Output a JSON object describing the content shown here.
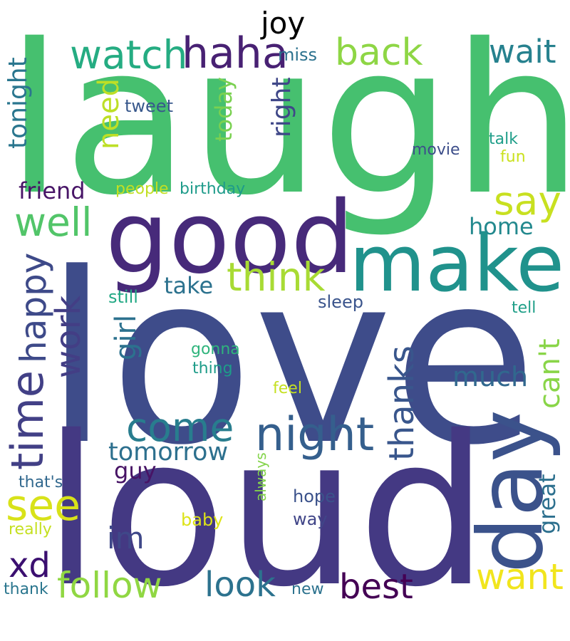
{
  "words": [
    {
      "text": "laugh",
      "color": "#46c06f"
    },
    {
      "text": "love",
      "color": "#3e4c8a"
    },
    {
      "text": "loud",
      "color": "#443983"
    },
    {
      "text": "good",
      "color": "#472a7a"
    },
    {
      "text": "make",
      "color": "#20928c"
    },
    {
      "text": "day",
      "color": "#3b528b"
    },
    {
      "text": "time",
      "color": "#424086"
    },
    {
      "text": "night",
      "color": "#355f8d"
    },
    {
      "text": "haha",
      "color": "#482173"
    },
    {
      "text": "watch",
      "color": "#25ac82"
    },
    {
      "text": "back",
      "color": "#8ed645"
    },
    {
      "text": "wait",
      "color": "#26818e"
    },
    {
      "text": "joy",
      "color": "#000000"
    },
    {
      "text": "think",
      "color": "#a8db34"
    },
    {
      "text": "well",
      "color": "#52c569"
    },
    {
      "text": "say",
      "color": "#c8e020"
    },
    {
      "text": "see",
      "color": "#d8e219"
    },
    {
      "text": "come",
      "color": "#287d8e"
    },
    {
      "text": "happy",
      "color": "#3e4a89"
    },
    {
      "text": "work",
      "color": "#433e85"
    },
    {
      "text": "thanks",
      "color": "#39568c"
    },
    {
      "text": "follow",
      "color": "#90d743"
    },
    {
      "text": "look",
      "color": "#2c728e"
    },
    {
      "text": "best",
      "color": "#440154"
    },
    {
      "text": "want",
      "color": "#f1e51d"
    },
    {
      "text": "can't",
      "color": "#89d548"
    },
    {
      "text": "xd",
      "color": "#3b0f70"
    },
    {
      "text": "need",
      "color": "#bddf26"
    },
    {
      "text": "tonight",
      "color": "#2a768e"
    },
    {
      "text": "girl",
      "color": "#2c718e"
    },
    {
      "text": "right",
      "color": "#3f4788"
    },
    {
      "text": "today",
      "color": "#7ad151"
    },
    {
      "text": "much",
      "color": "#31688e"
    },
    {
      "text": "im",
      "color": "#3f4889"
    },
    {
      "text": "tomorrow",
      "color": "#2d708e"
    },
    {
      "text": "friend",
      "color": "#481567"
    },
    {
      "text": "great",
      "color": "#2d708e"
    },
    {
      "text": "home",
      "color": "#23898e"
    },
    {
      "text": "take",
      "color": "#2c728e"
    },
    {
      "text": "guy",
      "color": "#471365"
    },
    {
      "text": "miss",
      "color": "#2c728e"
    },
    {
      "text": "tweet",
      "color": "#38588c"
    },
    {
      "text": "people",
      "color": "#c2df23"
    },
    {
      "text": "birthday",
      "color": "#1e9b8a"
    },
    {
      "text": "movie",
      "color": "#3d4e8a"
    },
    {
      "text": "talk",
      "color": "#1f9e89"
    },
    {
      "text": "fun",
      "color": "#cae11f"
    },
    {
      "text": "still",
      "color": "#22a884"
    },
    {
      "text": "sleep",
      "color": "#3a548c"
    },
    {
      "text": "tell",
      "color": "#1f9f88"
    },
    {
      "text": "gonna",
      "color": "#2fb47c"
    },
    {
      "text": "thing",
      "color": "#1e9c89"
    },
    {
      "text": "feel",
      "color": "#c5e021"
    },
    {
      "text": "that's",
      "color": "#31688e"
    },
    {
      "text": "always",
      "color": "#84d44b"
    },
    {
      "text": "hope",
      "color": "#3b528b"
    },
    {
      "text": "way",
      "color": "#404588"
    },
    {
      "text": "baby",
      "color": "#dde318"
    },
    {
      "text": "really",
      "color": "#c5e021"
    },
    {
      "text": "thank",
      "color": "#2a768e"
    },
    {
      "text": "new",
      "color": "#2c728e"
    }
  ]
}
